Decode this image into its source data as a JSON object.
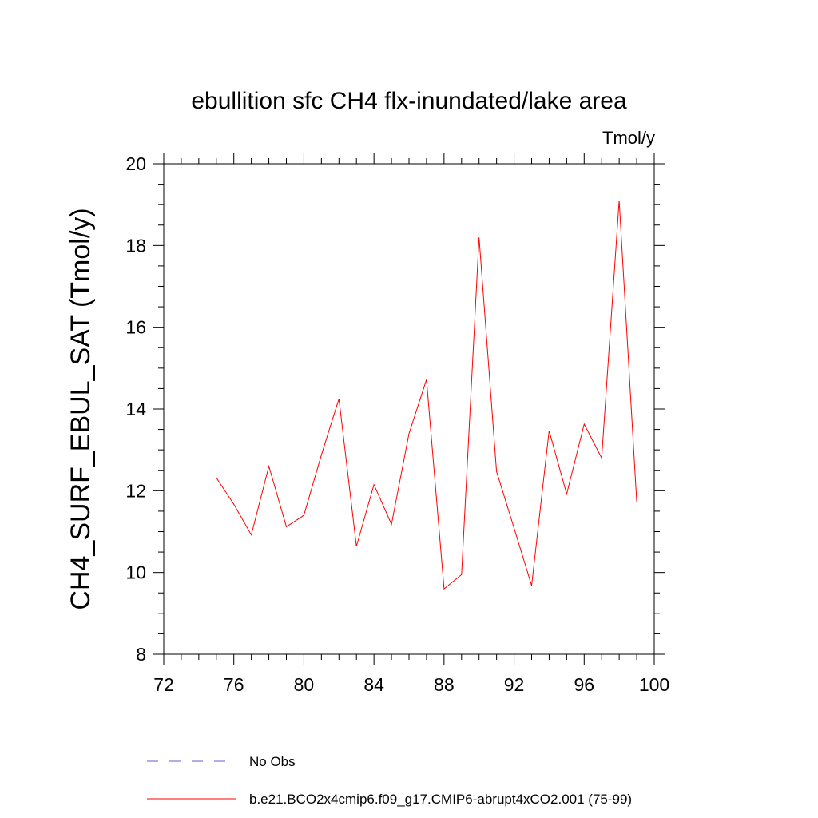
{
  "chart_data": {
    "type": "line",
    "title": "ebullition sfc CH4 flx-inundated/lake area",
    "units_label": "Tmol/y",
    "xlabel": "",
    "ylabel": "CH4_SURF_EBUL_SAT  (Tmol/y)",
    "xlim": [
      72,
      100
    ],
    "ylim": [
      8,
      20
    ],
    "xticks": [
      72,
      76,
      80,
      84,
      88,
      92,
      96,
      100
    ],
    "yticks": [
      8,
      10,
      12,
      14,
      16,
      18,
      20
    ],
    "grid": false,
    "legend_position": "bottom",
    "series": [
      {
        "name": "No Obs",
        "color": "#6a5acd",
        "style": "dashed",
        "x": [],
        "y": []
      },
      {
        "name": "b.e21.BCO2x4cmip6.f09_g17.CMIP6-abrupt4xCO2.001 (75-99)",
        "color": "#ff0000",
        "style": "solid",
        "x": [
          75,
          76,
          77,
          78,
          79,
          80,
          81,
          82,
          83,
          84,
          85,
          86,
          87,
          88,
          89,
          90,
          91,
          92,
          93,
          94,
          95,
          96,
          97,
          98,
          99
        ],
        "y": [
          12.32,
          11.67,
          10.92,
          12.6,
          11.12,
          11.4,
          12.88,
          14.25,
          10.64,
          12.15,
          11.18,
          13.4,
          14.72,
          9.6,
          9.95,
          18.2,
          12.47,
          11.08,
          9.68,
          13.47,
          11.92,
          13.63,
          12.8,
          19.1,
          11.72
        ]
      }
    ]
  }
}
